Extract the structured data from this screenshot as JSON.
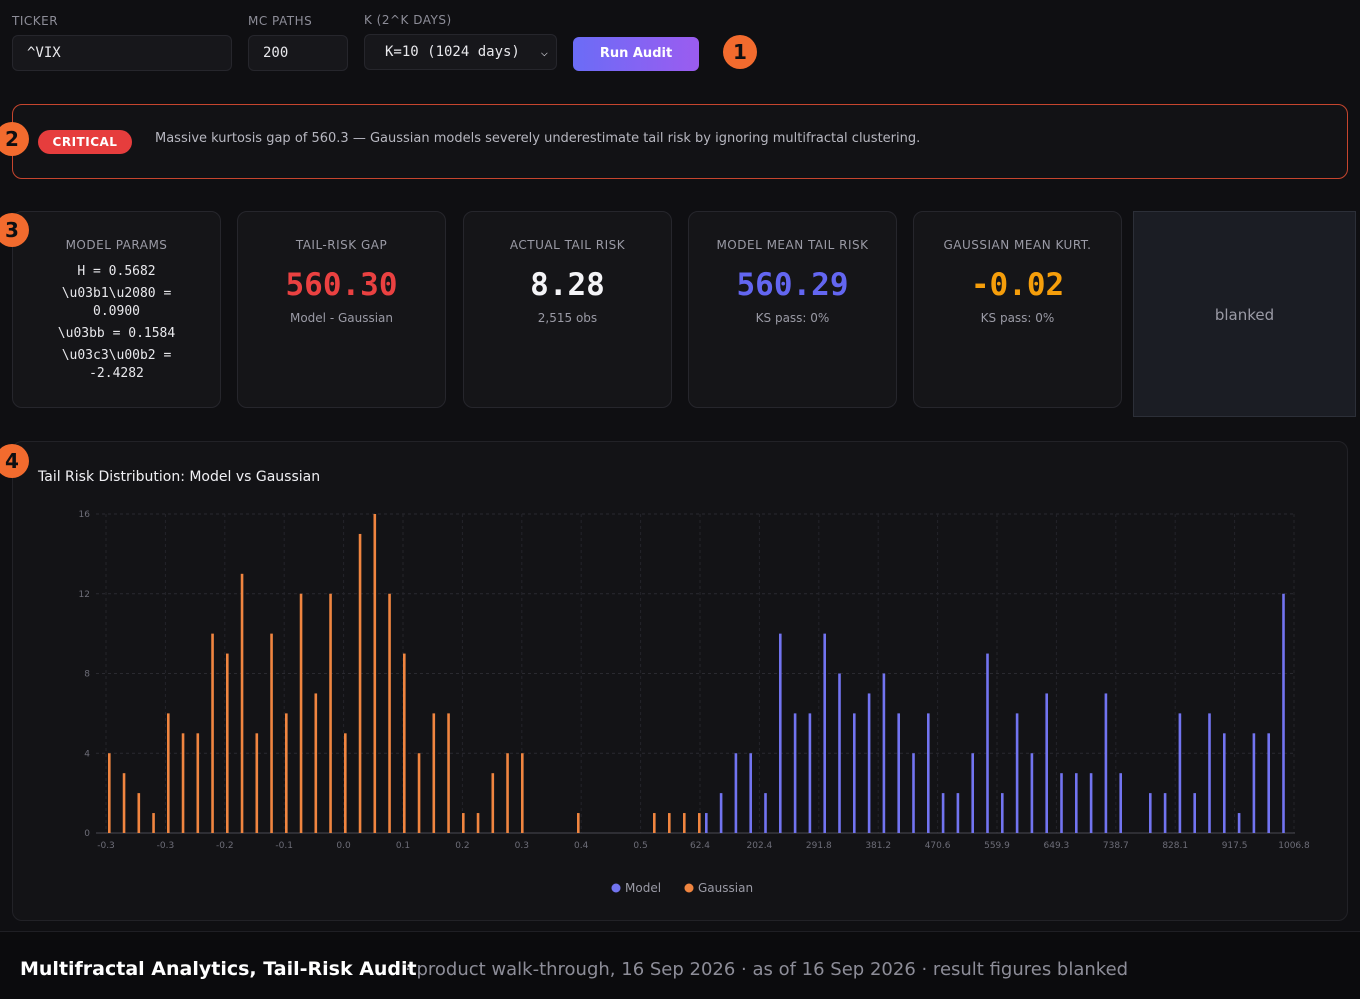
{
  "controls": {
    "ticker_label": "TICKER",
    "ticker_value": "^VIX",
    "mc_label": "MC PATHS",
    "mc_value": "200",
    "k_label": "K (2^K DAYS)",
    "k_value": "K=10 (1024 days)",
    "run_label": "Run Audit"
  },
  "steps": [
    "1",
    "2",
    "3",
    "4"
  ],
  "alert": {
    "badge": "CRITICAL",
    "message": "Massive kurtosis gap of 560.3 — Gaussian models severely underestimate tail risk by ignoring multifractal clustering."
  },
  "cards": {
    "params": {
      "title": "MODEL PARAMS",
      "lines": [
        "H = 0.5682",
        "\\u03b1\\u2080 =",
        "0.0900",
        "\\u03bb = 0.1584",
        "\\u03c3\\u00b2 =",
        "-2.4282"
      ]
    },
    "gap": {
      "title": "TAIL-RISK GAP",
      "value": "560.30",
      "sub": "Model - Gaussian"
    },
    "actual": {
      "title": "ACTUAL TAIL RISK",
      "value": "8.28",
      "sub": "2,515 obs"
    },
    "model": {
      "title": "MODEL MEAN TAIL RISK",
      "value": "560.29",
      "sub": "KS pass: 0%"
    },
    "gauss": {
      "title": "GAUSSIAN MEAN KURT.",
      "value": "-0.02",
      "sub": "KS pass: 0%"
    },
    "blank": "blanked"
  },
  "colors": {
    "model": "#7274f0",
    "gaussian": "#f08540",
    "critical": "#e63d3d",
    "gap_value": "#ea4141",
    "model_value": "#6366f1",
    "gauss_value": "#f59e0b"
  },
  "chart_data": {
    "type": "bar",
    "title": "Tail Risk Distribution: Model vs Gaussian",
    "ylim": [
      0,
      16
    ],
    "y_ticks": [
      "0",
      "4",
      "8",
      "12",
      "16"
    ],
    "x_tick_labels": [
      "-0.3",
      "-0.3",
      "-0.2",
      "-0.1",
      "0.0",
      "0.1",
      "0.2",
      "0.3",
      "0.4",
      "0.5",
      "62.4",
      "202.4",
      "291.8",
      "381.2",
      "470.6",
      "559.9",
      "649.3",
      "738.7",
      "828.1",
      "917.5",
      "1006.8"
    ],
    "grid": true,
    "legend_position": "bottom-center",
    "series": [
      {
        "name": "Gaussian",
        "values": [
          4,
          3,
          2,
          1,
          6,
          5,
          5,
          10,
          9,
          13,
          5,
          10,
          6,
          12,
          7,
          12,
          5,
          15,
          16,
          12,
          9,
          4,
          6,
          6,
          1,
          1,
          3,
          4,
          4,
          1,
          1,
          1,
          1,
          1
        ]
      },
      {
        "name": "Model",
        "values": [
          1,
          2,
          4,
          4,
          2,
          10,
          6,
          6,
          10,
          8,
          6,
          7,
          8,
          6,
          4,
          6,
          2,
          2,
          4,
          9,
          2,
          6,
          4,
          7,
          3,
          3,
          3,
          7,
          3,
          2,
          2,
          6,
          2,
          6,
          5,
          1,
          5,
          5,
          12
        ]
      }
    ]
  },
  "footer": {
    "title": "Multifractal Analytics, Tail-Risk Audit",
    "meta": "· product walk-through, 16 Sep 2026 · as of 16 Sep 2026 · result figures blanked"
  }
}
